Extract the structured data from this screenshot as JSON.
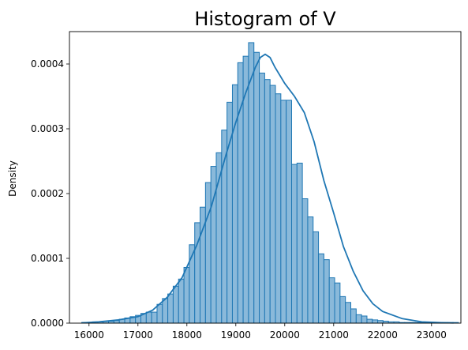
{
  "chart_data": {
    "type": "bar",
    "title": "Histogram of V",
    "xlabel": "",
    "ylabel": "Density",
    "xlim": [
      15600,
      23600
    ],
    "ylim": [
      0,
      0.00045
    ],
    "xticks": [
      16000,
      17000,
      18000,
      19000,
      20000,
      21000,
      22000,
      23000
    ],
    "yticks": [
      0,
      0.0001,
      0.0002,
      0.0003,
      0.0004
    ],
    "ytick_labels": [
      "0.0000",
      "0.0001",
      "0.0002",
      "0.0003",
      "0.0004"
    ],
    "grid": false,
    "legend": "none",
    "colors": {
      "bar_fill": "#8ab9da",
      "bar_edge": "#1f77b4",
      "kde_line": "#1f77b4"
    },
    "bins": {
      "start": 15850,
      "width": 110,
      "densities": [
        1e-06,
        1e-06,
        2e-06,
        2e-06,
        3e-06,
        3e-06,
        4e-06,
        6e-06,
        8e-06,
        1e-05,
        1.2e-05,
        1.5e-05,
        1.7e-05,
        1.7e-05,
        2.9e-05,
        3.8e-05,
        4.5e-05,
        5.7e-05,
        6.8e-05,
        8.6e-05,
        0.000121,
        0.000155,
        0.000179,
        0.000217,
        0.000242,
        0.000263,
        0.000298,
        0.000341,
        0.000368,
        0.000402,
        0.000412,
        0.000433,
        0.000418,
        0.000386,
        0.000376,
        0.000367,
        0.000354,
        0.000344,
        0.000344,
        0.000245,
        0.000247,
        0.000192,
        0.000164,
        0.000141,
        0.000107,
        9.8e-05,
        7e-05,
        6.2e-05,
        4.1e-05,
        3.2e-05,
        2.2e-05,
        1.3e-05,
        1.1e-05,
        6e-06,
        5e-06,
        4e-06,
        3e-06,
        2e-06,
        2e-06,
        1e-06,
        1e-06,
        1e-06,
        1e-06,
        1e-06,
        1e-06,
        1e-06,
        1e-06,
        1e-06,
        1e-06,
        1e-06
      ]
    },
    "kde": {
      "x": [
        15860,
        16200,
        16600,
        17000,
        17300,
        17600,
        17900,
        18200,
        18500,
        18800,
        19000,
        19200,
        19400,
        19500,
        19600,
        19700,
        19800,
        20000,
        20200,
        20400,
        20600,
        20800,
        21000,
        21200,
        21400,
        21600,
        21800,
        22000,
        22400,
        22800,
        23200,
        23450
      ],
      "y": [
        5e-07,
        2e-06,
        5e-06,
        1e-05,
        2e-05,
        4e-05,
        7e-05,
        0.00012,
        0.00018,
        0.00026,
        0.00031,
        0.000355,
        0.000395,
        0.00041,
        0.000415,
        0.00041,
        0.000395,
        0.00037,
        0.00035,
        0.000325,
        0.00028,
        0.00022,
        0.00017,
        0.000118,
        8e-05,
        5e-05,
        3e-05,
        1.8e-05,
        7e-06,
        2e-06,
        8e-07,
        3e-07
      ]
    }
  }
}
